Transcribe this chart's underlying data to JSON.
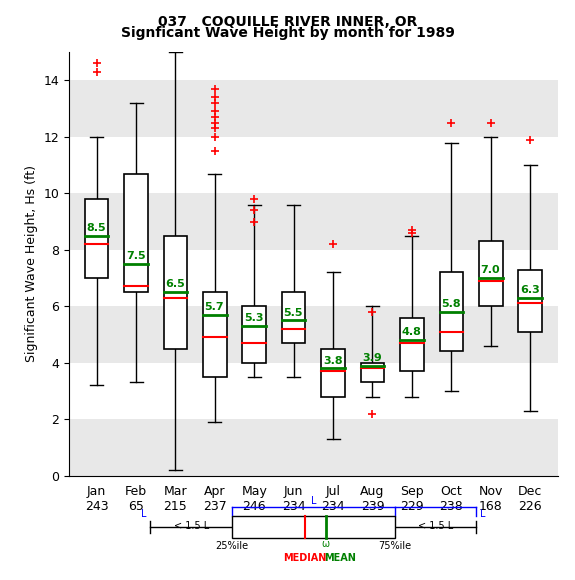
{
  "title1": "037   COQUILLE RIVER INNER, OR",
  "title2": "Signficant Wave Height by month for 1989",
  "ylabel": "Significant Wave Height, Hs (ft)",
  "months": [
    "Jan",
    "Feb",
    "Mar",
    "Apr",
    "May",
    "Jun",
    "Jul",
    "Aug",
    "Sep",
    "Oct",
    "Nov",
    "Dec"
  ],
  "counts": [
    243,
    65,
    215,
    237,
    246,
    234,
    234,
    239,
    229,
    238,
    168,
    226
  ],
  "means": [
    8.5,
    7.5,
    6.5,
    5.7,
    5.3,
    5.5,
    3.8,
    3.9,
    4.8,
    5.8,
    7.0,
    6.3
  ],
  "medians": [
    8.2,
    6.7,
    6.3,
    4.9,
    4.7,
    5.2,
    3.7,
    3.8,
    4.7,
    5.1,
    6.9,
    6.1
  ],
  "q1": [
    7.0,
    6.5,
    4.5,
    3.5,
    4.0,
    4.7,
    2.8,
    3.3,
    3.7,
    4.4,
    6.0,
    5.1
  ],
  "q3": [
    9.8,
    10.7,
    8.5,
    6.5,
    6.0,
    6.5,
    4.5,
    4.0,
    5.6,
    7.2,
    8.3,
    7.3
  ],
  "whisker_low": [
    3.2,
    3.3,
    0.2,
    1.9,
    3.5,
    3.5,
    1.3,
    2.8,
    2.8,
    3.0,
    4.6,
    2.3
  ],
  "whisker_high": [
    12.0,
    13.2,
    15.0,
    10.7,
    9.6,
    9.6,
    7.2,
    6.0,
    8.5,
    11.8,
    12.0,
    11.0
  ],
  "fliers": [
    [
      14.3,
      14.6
    ],
    [],
    [],
    [
      11.5,
      12.0,
      12.3,
      12.5,
      12.7,
      12.9,
      13.2,
      13.4,
      13.7
    ],
    [
      9.0,
      9.4,
      9.8
    ],
    [],
    [
      8.2
    ],
    [
      5.8,
      2.2
    ],
    [
      8.6,
      8.7
    ],
    [
      12.5
    ],
    [
      12.5
    ],
    [
      11.9
    ]
  ],
  "ylim": [
    0,
    15
  ],
  "yticks": [
    0,
    2,
    4,
    6,
    8,
    10,
    12,
    14
  ],
  "bg_color": "#f0f0f0",
  "stripe_colors": [
    "#e8e8e8",
    "#ffffff"
  ],
  "box_color": "white",
  "box_edge_color": "black",
  "median_color": "red",
  "mean_color": "green",
  "whisker_color": "black",
  "flier_color": "red",
  "mean_fontsize": 8,
  "title_fontsize": 10,
  "axis_fontsize": 9
}
